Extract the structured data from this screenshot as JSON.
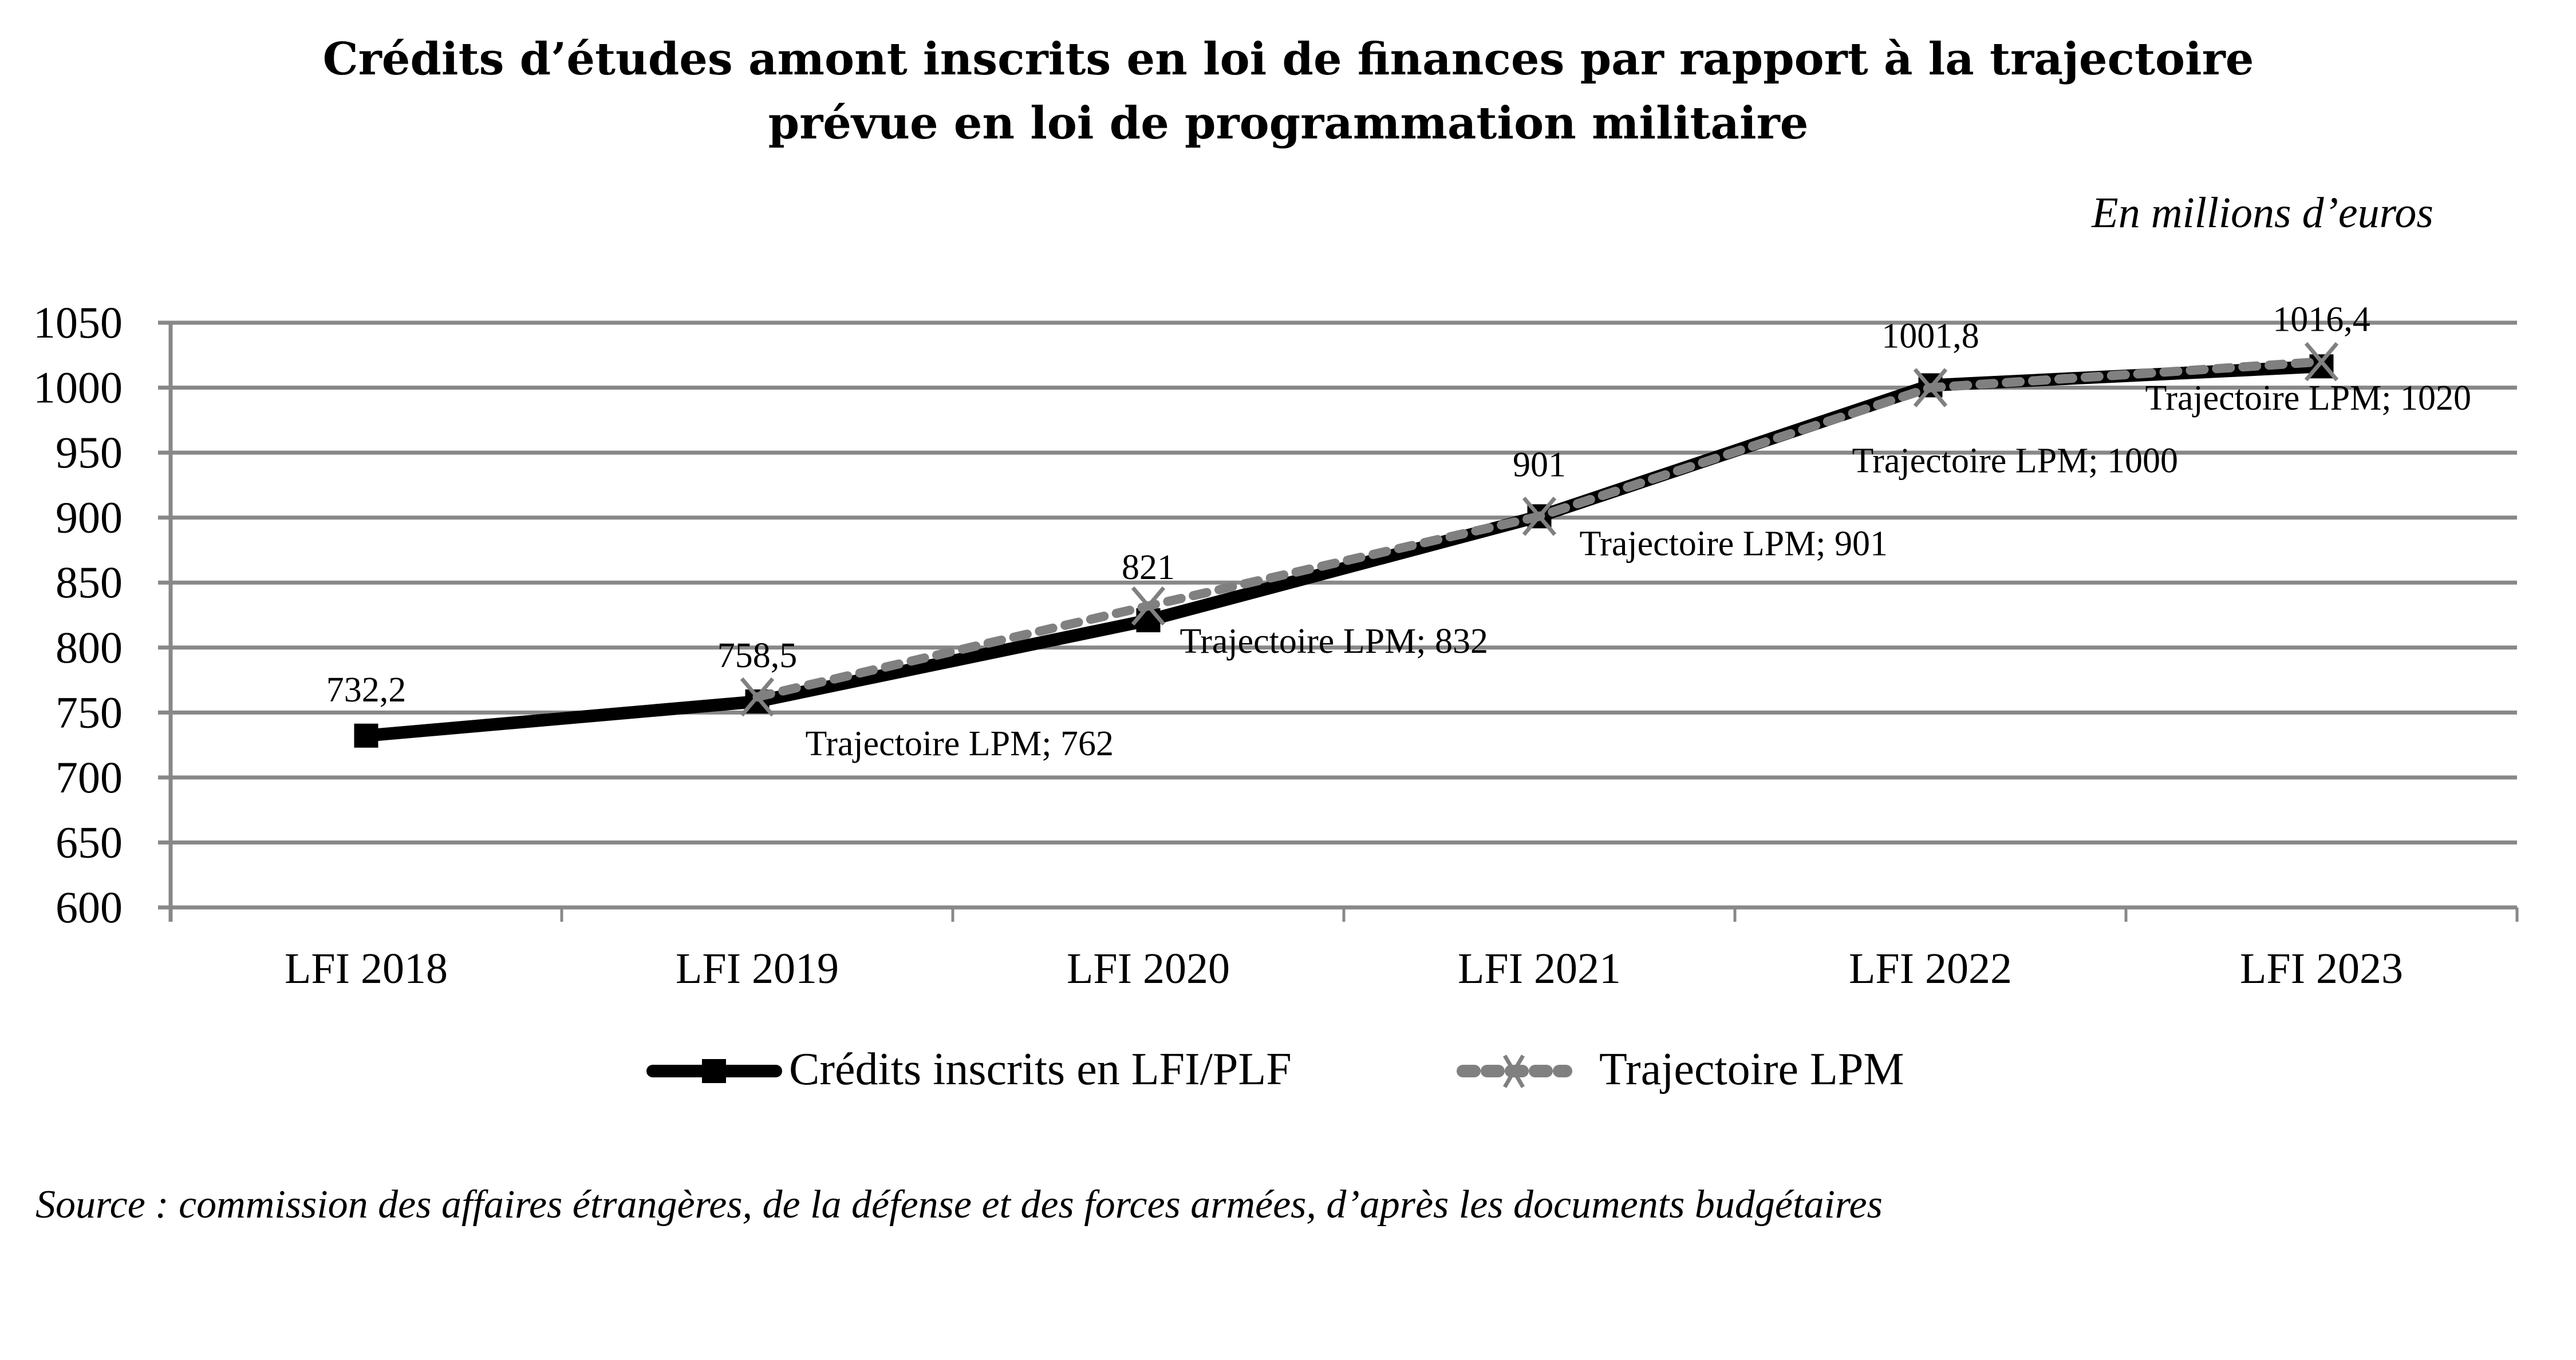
{
  "chart_data": {
    "type": "line",
    "title": "Crédits d’études amont inscrits en loi de finances par rapport à la trajectoire prévue en loi de programmation militaire",
    "title_lines": [
      "Crédits d’études amont inscrits en loi de finances par rapport à la trajectoire",
      "prévue en loi de programmation militaire"
    ],
    "unit_note": "En millions d’euros",
    "xlabel": "",
    "ylabel": "",
    "categories": [
      "LFI 2018",
      "LFI 2019",
      "LFI 2020",
      "LFI 2021",
      "LFI 2022",
      "LFI 2023"
    ],
    "ylim": [
      600,
      1050
    ],
    "yticks": [
      600,
      650,
      700,
      750,
      800,
      850,
      900,
      950,
      1000,
      1050
    ],
    "grid": true,
    "legend_position": "bottom",
    "series": [
      {
        "name": "Crédits inscrits en LFI/PLF",
        "color": "#000000",
        "style": "solid",
        "marker": "square",
        "values": [
          732.2,
          758.5,
          821,
          901,
          1001.8,
          1016.4
        ],
        "labels": [
          "732,2",
          "758,5",
          "821",
          "901",
          "1001,8",
          "1016,4"
        ]
      },
      {
        "name": "Trajectoire LPM",
        "color": "#808080",
        "style": "dashed",
        "marker": "x",
        "values": [
          null,
          762,
          832,
          901,
          1000,
          1020
        ],
        "labels": [
          null,
          "Trajectoire LPM; 762",
          "Trajectoire LPM; 832",
          "Trajectoire LPM; 901",
          "Trajectoire LPM; 1000",
          "Trajectoire LPM; 1020"
        ]
      }
    ],
    "source": "Source : commission des affaires étrangères, de la défense et des forces armées, d’après les documents budgétaires"
  }
}
